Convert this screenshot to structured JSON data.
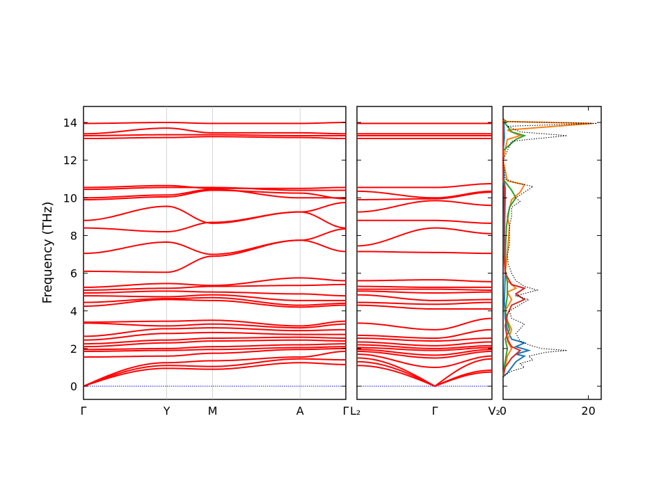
{
  "chart_data": [
    {
      "type": "line",
      "panel": "band-structure-main",
      "ylabel": "Frequency (THz)",
      "ylim": [
        -0.7,
        14.85
      ],
      "yticks": [
        0,
        2,
        4,
        6,
        8,
        10,
        12,
        14
      ],
      "xticks": [
        "Γ",
        "Y",
        "M",
        "A",
        "Γ"
      ],
      "line_color": "#ff0000",
      "zero_line_color": "#0000ff",
      "segments": [
        {
          "from": "Γ",
          "to": "Y",
          "x": [
            0,
            1
          ]
        },
        {
          "from": "Y",
          "to": "M",
          "x": [
            1,
            1.55
          ]
        },
        {
          "from": "M",
          "to": "A",
          "x": [
            1.55,
            2.6
          ]
        },
        {
          "from": "A",
          "to": "Γ",
          "x": [
            2.6,
            3.15
          ]
        }
      ],
      "bands": [
        [
          0,
          0.95,
          0.9,
          1.25,
          1.15
        ],
        [
          0,
          1.1,
          1.05,
          1.45,
          1.4
        ],
        [
          0,
          1.25,
          1.35,
          1.55,
          1.85
        ],
        [
          1.55,
          1.6,
          1.75,
          1.95,
          2.0
        ],
        [
          1.85,
          1.9,
          1.95,
          2.05,
          2.1
        ],
        [
          1.95,
          2.0,
          2.1,
          2.2,
          2.25
        ],
        [
          2.1,
          2.3,
          2.4,
          2.45,
          2.4
        ],
        [
          2.25,
          2.45,
          2.55,
          2.6,
          2.55
        ],
        [
          2.45,
          2.8,
          2.85,
          2.75,
          2.75
        ],
        [
          2.65,
          3.05,
          3.1,
          2.95,
          3.0
        ],
        [
          3.35,
          3.2,
          3.3,
          3.1,
          3.3
        ],
        [
          3.4,
          3.45,
          3.5,
          3.2,
          3.45
        ],
        [
          4.25,
          4.6,
          4.55,
          4.2,
          4.3
        ],
        [
          4.45,
          4.65,
          4.7,
          4.3,
          4.4
        ],
        [
          4.8,
          4.75,
          4.85,
          4.55,
          4.55
        ],
        [
          4.95,
          5.05,
          5.0,
          4.9,
          4.8
        ],
        [
          5.1,
          5.2,
          5.3,
          5.35,
          5.4
        ],
        [
          5.25,
          5.45,
          5.35,
          5.75,
          5.6
        ],
        [
          6.1,
          6.05,
          6.9,
          7.75,
          7.15
        ],
        [
          7.05,
          7.65,
          7.0,
          7.75,
          8.35
        ],
        [
          8.4,
          8.2,
          8.7,
          9.25,
          8.4
        ],
        [
          8.8,
          9.55,
          8.65,
          9.25,
          9.75
        ],
        [
          9.9,
          10.05,
          10.4,
          10.25,
          9.95
        ],
        [
          10.0,
          10.15,
          10.45,
          10.0,
          10.0
        ],
        [
          10.45,
          10.55,
          10.55,
          10.4,
          10.4
        ],
        [
          10.55,
          10.65,
          10.5,
          10.5,
          10.55
        ],
        [
          13.15,
          13.2,
          13.25,
          13.2,
          13.15
        ],
        [
          13.3,
          13.35,
          13.35,
          13.3,
          13.3
        ],
        [
          13.4,
          13.7,
          13.45,
          13.45,
          13.4
        ],
        [
          13.95,
          14.0,
          13.95,
          13.95,
          14.0
        ]
      ]
    },
    {
      "type": "line",
      "panel": "band-structure-secondary",
      "ylim": [
        -0.7,
        14.85
      ],
      "xticks": [
        "L₂",
        "Γ",
        "V₂"
      ],
      "line_color": "#ff0000",
      "bands": [
        [
          1.1,
          0,
          0.75
        ],
        [
          1.3,
          0,
          0.85
        ],
        [
          1.5,
          0,
          1.45
        ],
        [
          1.7,
          1.0,
          1.6
        ],
        [
          1.85,
          1.5,
          1.85
        ],
        [
          1.95,
          1.65,
          1.95
        ],
        [
          2.05,
          1.9,
          2.05
        ],
        [
          2.2,
          2.0,
          2.15
        ],
        [
          2.35,
          2.15,
          2.35
        ],
        [
          2.55,
          2.4,
          2.55
        ],
        [
          2.7,
          2.55,
          3.0
        ],
        [
          3.35,
          3.0,
          3.6
        ],
        [
          4.3,
          4.1,
          4.1
        ],
        [
          4.45,
          4.35,
          4.45
        ],
        [
          4.85,
          4.55,
          4.6
        ],
        [
          5.05,
          4.95,
          5.0
        ],
        [
          5.15,
          5.15,
          5.1
        ],
        [
          5.3,
          5.25,
          5.25
        ],
        [
          5.6,
          5.65,
          5.55
        ],
        [
          7.15,
          7.1,
          7.05
        ],
        [
          7.45,
          8.4,
          8.1
        ],
        [
          8.8,
          8.8,
          8.65
        ],
        [
          9.25,
          9.85,
          9.6
        ],
        [
          9.9,
          9.95,
          10.3
        ],
        [
          10.35,
          10.0,
          10.35
        ],
        [
          10.55,
          10.55,
          10.75
        ],
        [
          13.15,
          13.15,
          13.15
        ],
        [
          13.3,
          13.3,
          13.3
        ],
        [
          13.4,
          13.4,
          13.4
        ],
        [
          13.95,
          13.95,
          13.95
        ]
      ]
    },
    {
      "type": "line",
      "panel": "density-of-states",
      "xlim": [
        0,
        23
      ],
      "xticks": [
        "0",
        "20"
      ],
      "ylim": [
        -0.7,
        14.85
      ],
      "total": {
        "color": "#000000",
        "style": "dotted",
        "points": [
          [
            0,
            0.5
          ],
          [
            0.5,
            0.6
          ],
          [
            2,
            0.8
          ],
          [
            5,
            1.0
          ],
          [
            4,
            1.2
          ],
          [
            7,
            1.4
          ],
          [
            6,
            1.6
          ],
          [
            10,
            1.8
          ],
          [
            15,
            1.9
          ],
          [
            9,
            2.0
          ],
          [
            6,
            2.2
          ],
          [
            4,
            2.4
          ],
          [
            3,
            2.8
          ],
          [
            5,
            3.3
          ],
          [
            2,
            3.6
          ],
          [
            1.5,
            4.0
          ],
          [
            3,
            4.2
          ],
          [
            6,
            4.6
          ],
          [
            3,
            4.8
          ],
          [
            8,
            5.1
          ],
          [
            5,
            5.3
          ],
          [
            3,
            5.6
          ],
          [
            2,
            6.0
          ],
          [
            1.2,
            6.5
          ],
          [
            1,
            7.0
          ],
          [
            1.5,
            7.5
          ],
          [
            1.5,
            8.0
          ],
          [
            1.5,
            8.5
          ],
          [
            2,
            9.0
          ],
          [
            2,
            9.5
          ],
          [
            4,
            9.8
          ],
          [
            3,
            10.0
          ],
          [
            5,
            10.3
          ],
          [
            7,
            10.6
          ],
          [
            3,
            10.8
          ],
          [
            0.5,
            11.0
          ],
          [
            0,
            12.0
          ],
          [
            2,
            13.0
          ],
          [
            6,
            13.1
          ],
          [
            15,
            13.3
          ],
          [
            4,
            13.5
          ],
          [
            1,
            13.8
          ],
          [
            22,
            13.95
          ],
          [
            1,
            14.05
          ],
          [
            0,
            14.2
          ]
        ]
      },
      "projections": [
        {
          "color": "#1f77b4",
          "points": [
            [
              0,
              0.5
            ],
            [
              1,
              0.7
            ],
            [
              2,
              1.0
            ],
            [
              3,
              1.3
            ],
            [
              5,
              1.6
            ],
            [
              3,
              1.7
            ],
            [
              6,
              1.9
            ],
            [
              3,
              2.1
            ],
            [
              5,
              2.3
            ],
            [
              2,
              2.5
            ],
            [
              1,
              3.0
            ],
            [
              0.5,
              3.6
            ],
            [
              0.3,
              4.5
            ],
            [
              0.5,
              6.0
            ],
            [
              0.3,
              8.0
            ],
            [
              0.5,
              10.0
            ],
            [
              0.5,
              10.5
            ],
            [
              0.2,
              11.0
            ],
            [
              0,
              12.5
            ],
            [
              0.3,
              13.2
            ],
            [
              0.2,
              13.95
            ],
            [
              0,
              14.2
            ]
          ]
        },
        {
          "color": "#ff7f0e",
          "points": [
            [
              0,
              0.5
            ],
            [
              0.5,
              1.0
            ],
            [
              1,
              1.6
            ],
            [
              2,
              2.0
            ],
            [
              1,
              2.4
            ],
            [
              2,
              3.0
            ],
            [
              1,
              3.5
            ],
            [
              0.5,
              4.0
            ],
            [
              2,
              4.6
            ],
            [
              1,
              5.0
            ],
            [
              3,
              5.2
            ],
            [
              1,
              5.6
            ],
            [
              0.5,
              6.0
            ],
            [
              1,
              7.0
            ],
            [
              1.5,
              8.5
            ],
            [
              1,
              9.0
            ],
            [
              2,
              9.9
            ],
            [
              4,
              10.3
            ],
            [
              5,
              10.7
            ],
            [
              1,
              10.9
            ],
            [
              0,
              12.0
            ],
            [
              1,
              13.1
            ],
            [
              4,
              13.3
            ],
            [
              1,
              13.6
            ],
            [
              21,
              13.95
            ],
            [
              0.5,
              14.05
            ],
            [
              0,
              14.2
            ]
          ]
        },
        {
          "color": "#2ca02c",
          "points": [
            [
              0,
              0.5
            ],
            [
              0.4,
              1.2
            ],
            [
              1,
              2.0
            ],
            [
              0.5,
              2.5
            ],
            [
              1.5,
              3.0
            ],
            [
              1,
              3.4
            ],
            [
              0.5,
              4.0
            ],
            [
              1,
              4.8
            ],
            [
              1,
              5.5
            ],
            [
              0.5,
              6.2
            ],
            [
              0.6,
              7.5
            ],
            [
              0.8,
              8.5
            ],
            [
              1.5,
              9.5
            ],
            [
              3,
              10.0
            ],
            [
              2,
              10.4
            ],
            [
              0,
              11.0
            ],
            [
              0,
              12.5
            ],
            [
              3,
              13.1
            ],
            [
              5,
              13.3
            ],
            [
              2,
              13.5
            ],
            [
              0.5,
              13.95
            ],
            [
              0,
              14.2
            ]
          ]
        },
        {
          "color": "#d62728",
          "points": [
            [
              0,
              0.5
            ],
            [
              0.5,
              1.0
            ],
            [
              2,
              1.5
            ],
            [
              4,
              1.9
            ],
            [
              2,
              2.1
            ],
            [
              1,
              2.5
            ],
            [
              0.5,
              3.2
            ],
            [
              1,
              3.8
            ],
            [
              2,
              4.3
            ],
            [
              5,
              4.6
            ],
            [
              3,
              4.9
            ],
            [
              5,
              5.2
            ],
            [
              2,
              5.4
            ],
            [
              0.5,
              6.0
            ],
            [
              0.2,
              7.0
            ],
            [
              0.2,
              9.0
            ],
            [
              0.3,
              10.5
            ],
            [
              0,
              11.0
            ],
            [
              0,
              14.2
            ]
          ]
        }
      ]
    }
  ]
}
